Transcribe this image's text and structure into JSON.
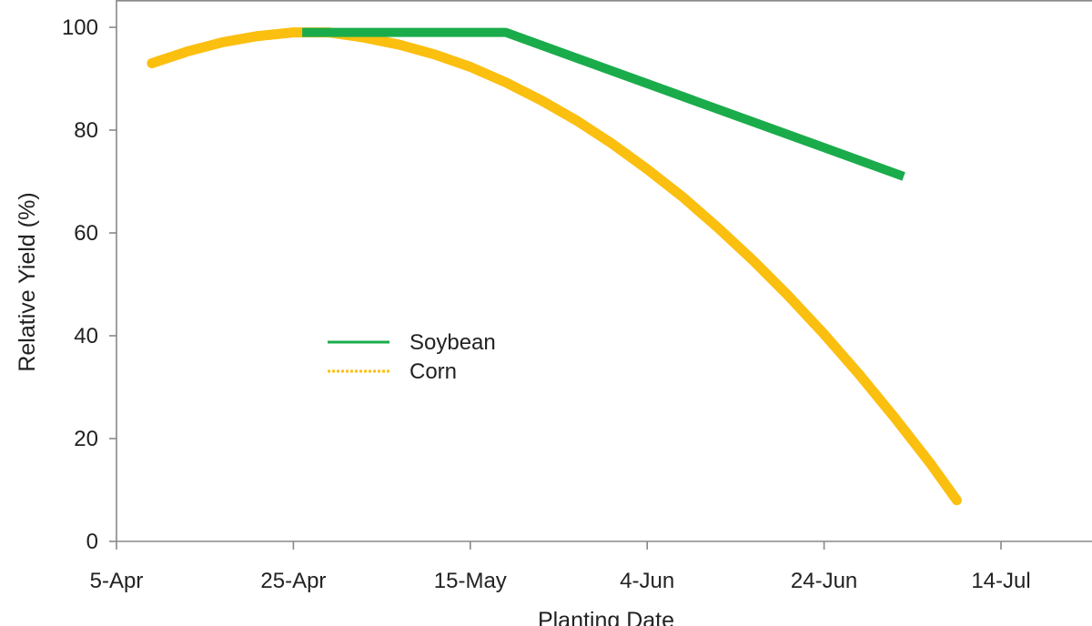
{
  "chart_data": {
    "type": "line",
    "xlabel": "Planting Date",
    "ylabel": "Relative  Yield (%)",
    "x_ticks": [
      "5-Apr",
      "25-Apr",
      "15-May",
      "4-Jun",
      "24-Jun",
      "14-Jul"
    ],
    "x_tick_dates": [
      "2000-04-05",
      "2000-04-25",
      "2000-05-15",
      "2000-06-04",
      "2000-06-24",
      "2000-07-14"
    ],
    "xlim": [
      "2000-04-05",
      "2000-07-14"
    ],
    "ylim": [
      0,
      100
    ],
    "y_ticks": [
      0,
      20,
      40,
      60,
      80,
      100
    ],
    "grid": false,
    "legend_position": "center-left",
    "series": [
      {
        "name": "Soybean",
        "color": "#1aac4b",
        "style": "solid",
        "points": [
          {
            "x": "2000-04-26",
            "y": 99
          },
          {
            "x": "2000-05-19",
            "y": 99
          },
          {
            "x": "2000-07-03",
            "y": 71
          }
        ]
      },
      {
        "name": "Corn",
        "color": "#fbbf10",
        "style": "dotted",
        "points": [
          {
            "x": "2000-04-09",
            "y": 93
          },
          {
            "x": "2000-04-13",
            "y": 95.3
          },
          {
            "x": "2000-04-17",
            "y": 97.1
          },
          {
            "x": "2000-04-21",
            "y": 98.3
          },
          {
            "x": "2000-04-25",
            "y": 99
          },
          {
            "x": "2000-04-29",
            "y": 99
          },
          {
            "x": "2000-05-03",
            "y": 98
          },
          {
            "x": "2000-05-07",
            "y": 96.6
          },
          {
            "x": "2000-05-11",
            "y": 94.7
          },
          {
            "x": "2000-05-15",
            "y": 92.3
          },
          {
            "x": "2000-05-19",
            "y": 89.3
          },
          {
            "x": "2000-05-23",
            "y": 85.8
          },
          {
            "x": "2000-05-27",
            "y": 81.9
          },
          {
            "x": "2000-05-31",
            "y": 77.4
          },
          {
            "x": "2000-06-04",
            "y": 72.4
          },
          {
            "x": "2000-06-08",
            "y": 67
          },
          {
            "x": "2000-06-12",
            "y": 61
          },
          {
            "x": "2000-06-16",
            "y": 54.6
          },
          {
            "x": "2000-06-20",
            "y": 47.7
          },
          {
            "x": "2000-06-24",
            "y": 40.3
          },
          {
            "x": "2000-06-28",
            "y": 32.4
          },
          {
            "x": "2000-07-02",
            "y": 24
          },
          {
            "x": "2000-07-06",
            "y": 15.2
          },
          {
            "x": "2000-07-09",
            "y": 8
          }
        ]
      }
    ]
  }
}
